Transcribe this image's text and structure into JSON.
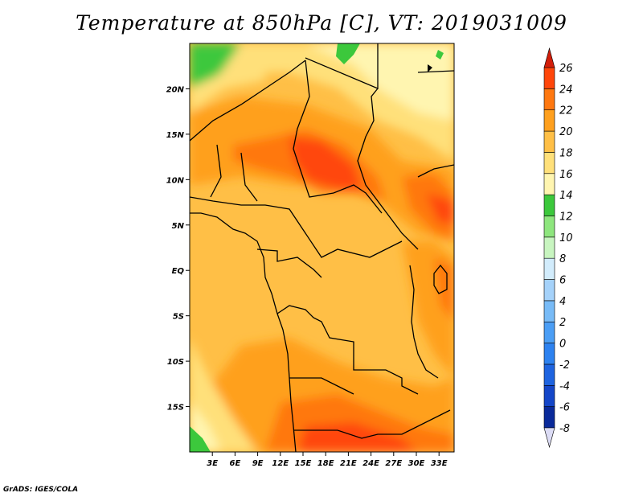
{
  "title": "Temperature at 850hPa [C], VT: 2019031009",
  "credit": "GrADS: IGES/COLA",
  "map": {
    "lon_range": [
      0,
      35
    ],
    "lat_range": [
      -20,
      25
    ],
    "lat_ticks": [
      {
        "value": 20,
        "label": "20N"
      },
      {
        "value": 15,
        "label": "15N"
      },
      {
        "value": 10,
        "label": "10N"
      },
      {
        "value": 5,
        "label": "5N"
      },
      {
        "value": 0,
        "label": "EQ"
      },
      {
        "value": -5,
        "label": "5S"
      },
      {
        "value": -10,
        "label": "10S"
      },
      {
        "value": -15,
        "label": "15S"
      }
    ],
    "lon_ticks": [
      {
        "value": 3,
        "label": "3E"
      },
      {
        "value": 6,
        "label": "6E"
      },
      {
        "value": 9,
        "label": "9E"
      },
      {
        "value": 12,
        "label": "12E"
      },
      {
        "value": 15,
        "label": "15E"
      },
      {
        "value": 18,
        "label": "18E"
      },
      {
        "value": 21,
        "label": "21E"
      },
      {
        "value": 24,
        "label": "24E"
      },
      {
        "value": 27,
        "label": "27E"
      },
      {
        "value": 30,
        "label": "30E"
      },
      {
        "value": 33,
        "label": "33E"
      }
    ]
  },
  "colorbar": {
    "levels": [
      {
        "value": -8,
        "label": "-8",
        "color": "#0a0f80"
      },
      {
        "value": -6,
        "label": "-6",
        "color": "#0a2a9a"
      },
      {
        "value": -4,
        "label": "-4",
        "color": "#1446c8"
      },
      {
        "value": -2,
        "label": "-2",
        "color": "#1e64e0"
      },
      {
        "value": 0,
        "label": "0",
        "color": "#2d82f0"
      },
      {
        "value": 2,
        "label": "2",
        "color": "#4b9ef5"
      },
      {
        "value": 4,
        "label": "4",
        "color": "#78bbf7"
      },
      {
        "value": 6,
        "label": "6",
        "color": "#a5d2fa"
      },
      {
        "value": 8,
        "label": "8",
        "color": "#d2ecfc"
      },
      {
        "value": 10,
        "label": "10",
        "color": "#c8f5c0"
      },
      {
        "value": 12,
        "label": "12",
        "color": "#8ee67e"
      },
      {
        "value": 14,
        "label": "14",
        "color": "#3cc83c"
      },
      {
        "value": 16,
        "label": "16",
        "color": "#fff5b0"
      },
      {
        "value": 18,
        "label": "18",
        "color": "#ffe07a"
      },
      {
        "value": 20,
        "label": "20",
        "color": "#ffbf46"
      },
      {
        "value": 22,
        "label": "22",
        "color": "#ffa01e"
      },
      {
        "value": 24,
        "label": "24",
        "color": "#ff7810"
      },
      {
        "value": 26,
        "label": "26",
        "color": "#ff460a"
      }
    ],
    "under_color": "#dcdcf5",
    "over_color": "#d21e0a"
  }
}
